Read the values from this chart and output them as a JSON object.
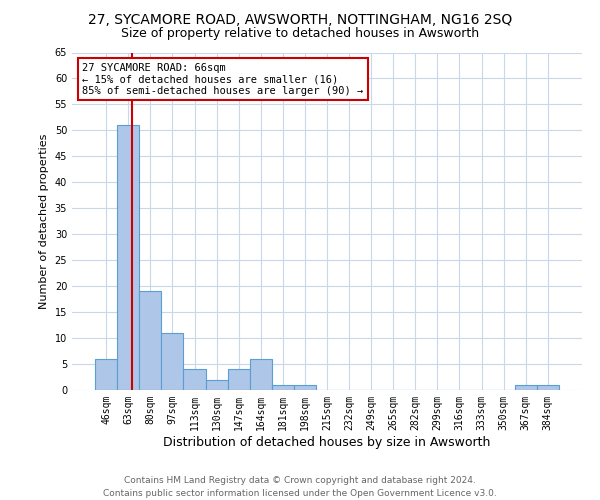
{
  "title": "27, SYCAMORE ROAD, AWSWORTH, NOTTINGHAM, NG16 2SQ",
  "subtitle": "Size of property relative to detached houses in Awsworth",
  "xlabel": "Distribution of detached houses by size in Awsworth",
  "ylabel": "Number of detached properties",
  "bar_labels": [
    "46sqm",
    "63sqm",
    "80sqm",
    "97sqm",
    "113sqm",
    "130sqm",
    "147sqm",
    "164sqm",
    "181sqm",
    "198sqm",
    "215sqm",
    "232sqm",
    "249sqm",
    "265sqm",
    "282sqm",
    "299sqm",
    "316sqm",
    "333sqm",
    "350sqm",
    "367sqm",
    "384sqm"
  ],
  "bar_values": [
    6,
    51,
    19,
    11,
    4,
    2,
    4,
    6,
    1,
    1,
    0,
    0,
    0,
    0,
    0,
    0,
    0,
    0,
    0,
    1,
    1
  ],
  "bar_color": "#aec6e8",
  "bar_edge_color": "#5a9fd4",
  "property_line_label": "27 SYCAMORE ROAD: 66sqm",
  "annotation_line1": "← 15% of detached houses are smaller (16)",
  "annotation_line2": "85% of semi-detached houses are larger (90) →",
  "annotation_box_color": "#ffffff",
  "annotation_box_edge": "#cc0000",
  "vline_color": "#cc0000",
  "ylim": [
    0,
    65
  ],
  "yticks": [
    0,
    5,
    10,
    15,
    20,
    25,
    30,
    35,
    40,
    45,
    50,
    55,
    60,
    65
  ],
  "footer_line1": "Contains HM Land Registry data © Crown copyright and database right 2024.",
  "footer_line2": "Contains public sector information licensed under the Open Government Licence v3.0.",
  "bg_color": "#ffffff",
  "grid_color": "#c8d8e8",
  "title_fontsize": 10,
  "subtitle_fontsize": 9,
  "xlabel_fontsize": 9,
  "ylabel_fontsize": 8,
  "tick_fontsize": 7,
  "annot_fontsize": 7.5,
  "footer_fontsize": 6.5
}
